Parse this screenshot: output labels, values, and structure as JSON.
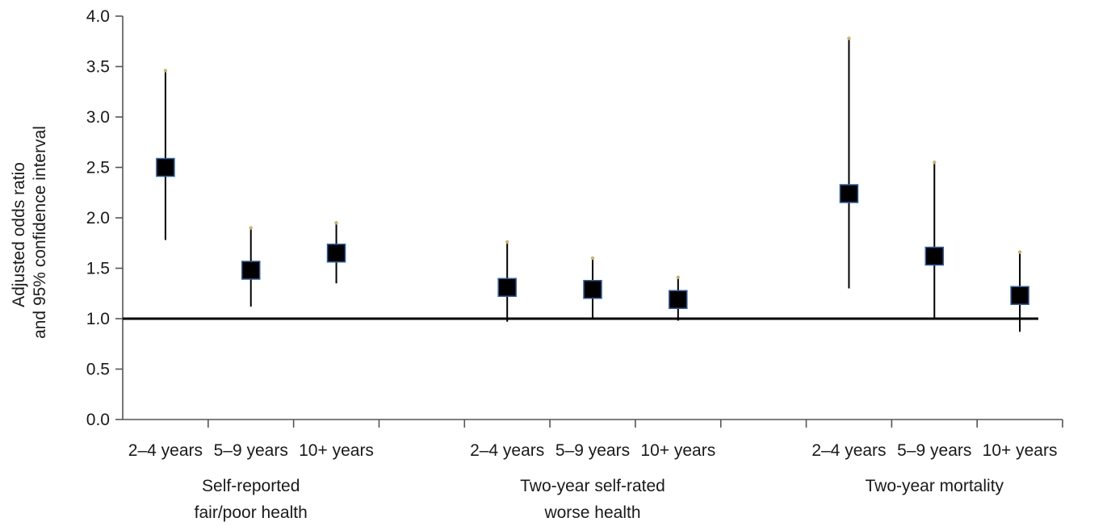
{
  "chart_data": {
    "type": "scatter",
    "ylabel": [
      "Adjusted odds ratio",
      "and 95% confidence interval"
    ],
    "ylim": [
      0,
      4
    ],
    "y_ticks": [
      "0.0",
      "0.5",
      "1.0",
      "1.5",
      "2.0",
      "2.5",
      "3.0",
      "3.5",
      "4.0"
    ],
    "reference_line": 1.0,
    "groups": [
      {
        "label": [
          "Self-reported",
          "fair/poor health"
        ],
        "points": [
          {
            "category": "2–4 years",
            "value": 2.5,
            "ci_low": 1.78,
            "ci_high": 3.46
          },
          {
            "category": "5–9 years",
            "value": 1.48,
            "ci_low": 1.12,
            "ci_high": 1.9
          },
          {
            "category": "10+ years",
            "value": 1.65,
            "ci_low": 1.35,
            "ci_high": 1.95
          }
        ]
      },
      {
        "label": [
          "Two-year self-rated",
          "worse health"
        ],
        "points": [
          {
            "category": "2–4 years",
            "value": 1.31,
            "ci_low": 0.97,
            "ci_high": 1.76
          },
          {
            "category": "5–9 years",
            "value": 1.29,
            "ci_low": 1.01,
            "ci_high": 1.6
          },
          {
            "category": "10+ years",
            "value": 1.19,
            "ci_low": 0.98,
            "ci_high": 1.41
          }
        ]
      },
      {
        "label": [
          "Two-year mortality"
        ],
        "points": [
          {
            "category": "2–4 years",
            "value": 2.24,
            "ci_low": 1.3,
            "ci_high": 3.78
          },
          {
            "category": "5–9 years",
            "value": 1.62,
            "ci_low": 1.01,
            "ci_high": 2.55
          },
          {
            "category": "10+ years",
            "value": 1.23,
            "ci_low": 0.87,
            "ci_high": 1.66
          }
        ]
      }
    ],
    "grid": false,
    "legend": "none",
    "colors": {
      "marker": "#000000",
      "marker_edge": "#2b5ea8",
      "line": "#000000"
    }
  }
}
